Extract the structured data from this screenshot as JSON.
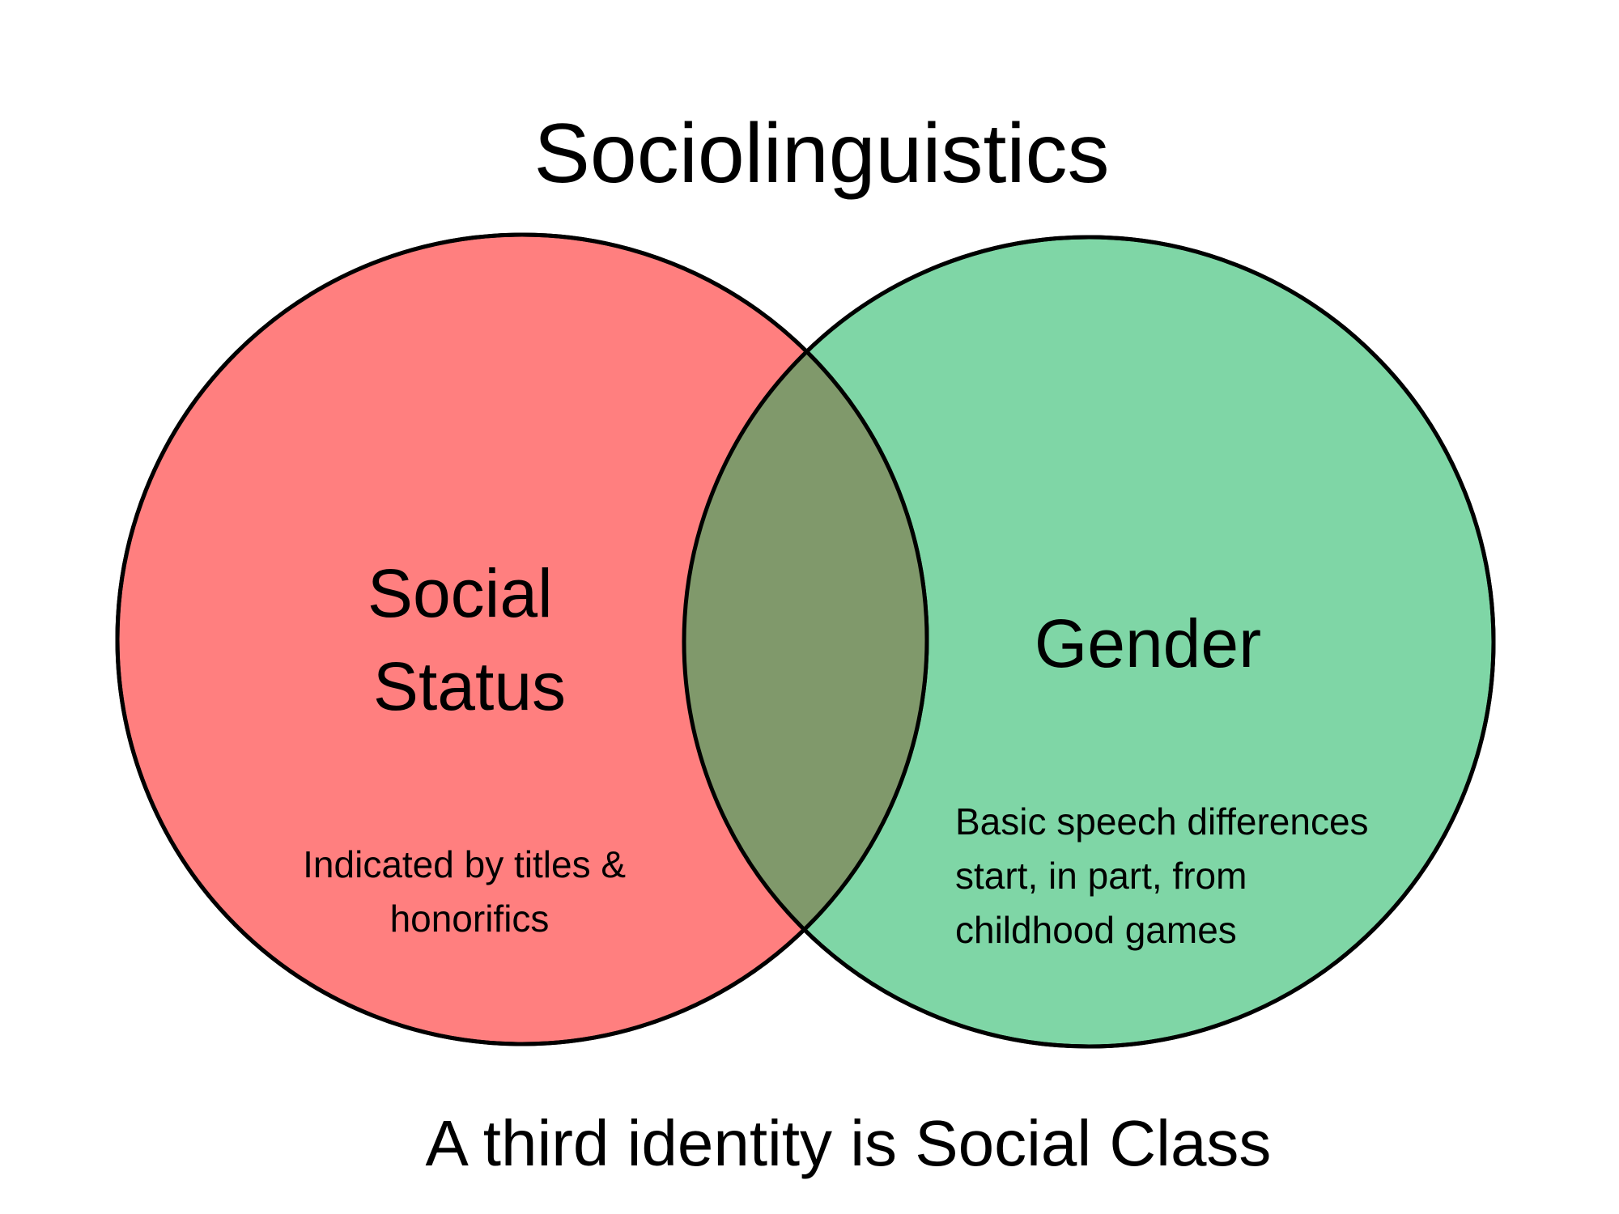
{
  "title": "Sociolinguistics",
  "left_set": {
    "label_lines": [
      "Social",
      "Status"
    ],
    "note_lines": [
      "Indicated by titles &",
      "honorifics"
    ],
    "fill": "#FF7F7F"
  },
  "right_set": {
    "label": "Gender",
    "note_lines": [
      "Basic speech differences",
      "start, in part, from",
      "childhood games"
    ],
    "fill": "#7FD6A6"
  },
  "overlap_fill": "#80996B",
  "outline_color": "#000000",
  "footer": "A third identity is Social Class"
}
